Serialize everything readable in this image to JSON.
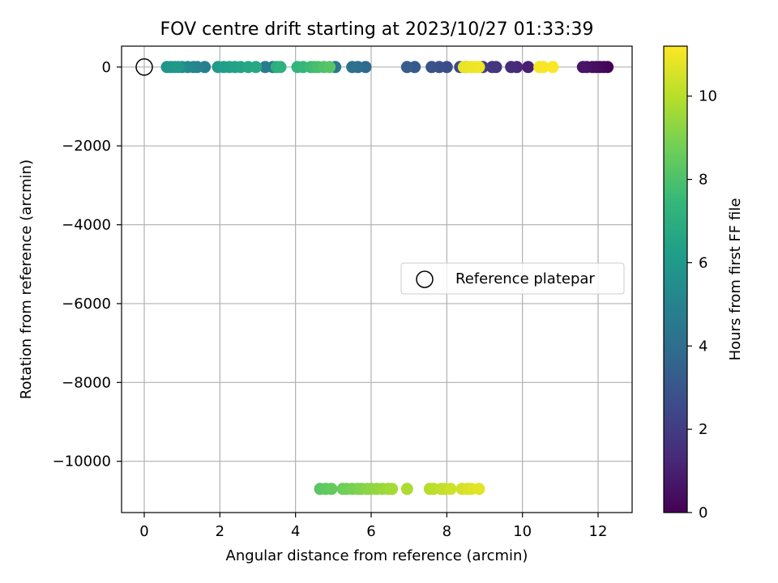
{
  "chart_data": {
    "type": "scatter",
    "title": "FOV centre drift starting at 2023/10/27 01:33:39",
    "xlabel": "Angular distance from reference (arcmin)",
    "ylabel": "Rotation from reference (arcmin)",
    "xlim": [
      -0.6,
      12.9
    ],
    "ylim": [
      -11300,
      530
    ],
    "x_ticks": [
      0,
      2,
      4,
      6,
      8,
      10,
      12
    ],
    "x_tick_labels": [
      "0",
      "2",
      "4",
      "6",
      "8",
      "10",
      "12"
    ],
    "y_ticks": [
      0,
      -2000,
      -4000,
      -6000,
      -8000,
      -10000
    ],
    "y_tick_labels": [
      "0",
      "−2000",
      "−4000",
      "−6000",
      "−8000",
      "−10000"
    ],
    "grid": true,
    "legend": {
      "position": "center-right",
      "entries": [
        "Reference platepar"
      ]
    },
    "colorbar": {
      "label": "Hours from first FF file",
      "colormap": "viridis",
      "range": [
        0,
        11.2
      ],
      "ticks": [
        0,
        2,
        4,
        6,
        8,
        10
      ],
      "tick_labels": [
        "0",
        "2",
        "4",
        "6",
        "8",
        "10"
      ]
    },
    "reference_point": {
      "x": 0,
      "y": 0
    },
    "colors": {
      "viridis_stops": [
        "#440154",
        "#482878",
        "#3e4989",
        "#31688e",
        "#26828e",
        "#1f9e89",
        "#35b779",
        "#6ece58",
        "#b5de2b",
        "#fde725"
      ],
      "grid": "#b0b0b0",
      "axes": "#000000"
    },
    "points": [
      {
        "x": 12.25,
        "y": 0,
        "c": 0.05
      },
      {
        "x": 12.15,
        "y": 0,
        "c": 0.15
      },
      {
        "x": 12.05,
        "y": 0,
        "c": 0.25
      },
      {
        "x": 11.95,
        "y": 0,
        "c": 0.35
      },
      {
        "x": 11.85,
        "y": 0,
        "c": 0.45
      },
      {
        "x": 11.7,
        "y": 0,
        "c": 0.55
      },
      {
        "x": 11.6,
        "y": 0,
        "c": 0.65
      },
      {
        "x": 10.15,
        "y": 0,
        "c": 1.0
      },
      {
        "x": 9.85,
        "y": 0,
        "c": 1.3
      },
      {
        "x": 9.7,
        "y": 0,
        "c": 1.45
      },
      {
        "x": 9.3,
        "y": 0,
        "c": 1.7
      },
      {
        "x": 9.2,
        "y": 0,
        "c": 1.8
      },
      {
        "x": 8.95,
        "y": 0,
        "c": 2.0
      },
      {
        "x": 8.5,
        "y": 0,
        "c": 2.25
      },
      {
        "x": 8.35,
        "y": 0,
        "c": 2.4
      },
      {
        "x": 8.0,
        "y": 0,
        "c": 2.6
      },
      {
        "x": 7.8,
        "y": 0,
        "c": 2.75
      },
      {
        "x": 7.6,
        "y": 0,
        "c": 2.9
      },
      {
        "x": 7.15,
        "y": 0,
        "c": 3.15
      },
      {
        "x": 6.95,
        "y": 0,
        "c": 3.3
      },
      {
        "x": 5.85,
        "y": 0,
        "c": 3.85
      },
      {
        "x": 5.65,
        "y": 0,
        "c": 4.0
      },
      {
        "x": 5.5,
        "y": 0,
        "c": 4.15
      },
      {
        "x": 5.05,
        "y": 0,
        "c": 4.35
      },
      {
        "x": 3.4,
        "y": 0,
        "c": 4.5
      },
      {
        "x": 3.2,
        "y": 0,
        "c": 4.65
      },
      {
        "x": 1.6,
        "y": 0,
        "c": 4.85
      },
      {
        "x": 1.4,
        "y": 0,
        "c": 5.0
      },
      {
        "x": 1.3,
        "y": 0,
        "c": 5.15
      },
      {
        "x": 1.15,
        "y": 0,
        "c": 5.3
      },
      {
        "x": 1.0,
        "y": 0,
        "c": 5.45
      },
      {
        "x": 0.8,
        "y": 0,
        "c": 5.6
      },
      {
        "x": 0.6,
        "y": 0,
        "c": 5.75
      },
      {
        "x": 0.7,
        "y": 0,
        "c": 5.9
      },
      {
        "x": 0.9,
        "y": 0,
        "c": 6.0
      },
      {
        "x": 1.95,
        "y": 0,
        "c": 6.1
      },
      {
        "x": 2.1,
        "y": 0,
        "c": 6.2
      },
      {
        "x": 2.25,
        "y": 0,
        "c": 6.3
      },
      {
        "x": 2.4,
        "y": 0,
        "c": 6.4
      },
      {
        "x": 2.55,
        "y": 0,
        "c": 6.5
      },
      {
        "x": 2.75,
        "y": 0,
        "c": 6.6
      },
      {
        "x": 2.95,
        "y": 0,
        "c": 6.7
      },
      {
        "x": 3.5,
        "y": 0,
        "c": 7.0
      },
      {
        "x": 3.6,
        "y": 0,
        "c": 7.15
      },
      {
        "x": 4.05,
        "y": 0,
        "c": 7.3
      },
      {
        "x": 4.2,
        "y": 0,
        "c": 7.45
      },
      {
        "x": 4.4,
        "y": 0,
        "c": 7.6
      },
      {
        "x": 4.5,
        "y": 0,
        "c": 7.75
      },
      {
        "x": 4.6,
        "y": 0,
        "c": 7.9
      },
      {
        "x": 4.75,
        "y": 0,
        "c": 8.05
      },
      {
        "x": 4.9,
        "y": 0,
        "c": 8.2
      },
      {
        "x": 4.65,
        "y": -10700,
        "c": 8.3
      },
      {
        "x": 4.8,
        "y": -10700,
        "c": 8.4
      },
      {
        "x": 4.95,
        "y": -10700,
        "c": 8.5
      },
      {
        "x": 5.25,
        "y": -10700,
        "c": 8.65
      },
      {
        "x": 5.35,
        "y": -10700,
        "c": 8.75
      },
      {
        "x": 5.5,
        "y": -10700,
        "c": 8.85
      },
      {
        "x": 5.65,
        "y": -10700,
        "c": 8.95
      },
      {
        "x": 5.75,
        "y": -10700,
        "c": 9.05
      },
      {
        "x": 5.9,
        "y": -10700,
        "c": 9.15
      },
      {
        "x": 6.0,
        "y": -10700,
        "c": 9.25
      },
      {
        "x": 6.15,
        "y": -10700,
        "c": 9.35
      },
      {
        "x": 6.3,
        "y": -10700,
        "c": 9.45
      },
      {
        "x": 6.45,
        "y": -10700,
        "c": 9.55
      },
      {
        "x": 6.55,
        "y": -10700,
        "c": 9.65
      },
      {
        "x": 6.95,
        "y": -10700,
        "c": 9.8
      },
      {
        "x": 7.55,
        "y": -10700,
        "c": 9.95
      },
      {
        "x": 7.65,
        "y": -10700,
        "c": 10.05
      },
      {
        "x": 7.85,
        "y": -10700,
        "c": 10.15
      },
      {
        "x": 7.95,
        "y": -10700,
        "c": 10.25
      },
      {
        "x": 8.1,
        "y": -10700,
        "c": 10.35
      },
      {
        "x": 8.4,
        "y": -10700,
        "c": 10.45
      },
      {
        "x": 8.55,
        "y": -10700,
        "c": 10.55
      },
      {
        "x": 8.65,
        "y": -10700,
        "c": 10.65
      },
      {
        "x": 8.85,
        "y": -10700,
        "c": 10.75
      },
      {
        "x": 8.45,
        "y": 0,
        "c": 10.8
      },
      {
        "x": 8.55,
        "y": 0,
        "c": 10.85
      },
      {
        "x": 8.65,
        "y": 0,
        "c": 10.9
      },
      {
        "x": 8.75,
        "y": 0,
        "c": 10.95
      },
      {
        "x": 8.85,
        "y": 0,
        "c": 11.0
      },
      {
        "x": 10.45,
        "y": 0,
        "c": 11.05
      },
      {
        "x": 10.55,
        "y": 0,
        "c": 11.1
      },
      {
        "x": 10.8,
        "y": 0,
        "c": 11.15
      }
    ]
  }
}
